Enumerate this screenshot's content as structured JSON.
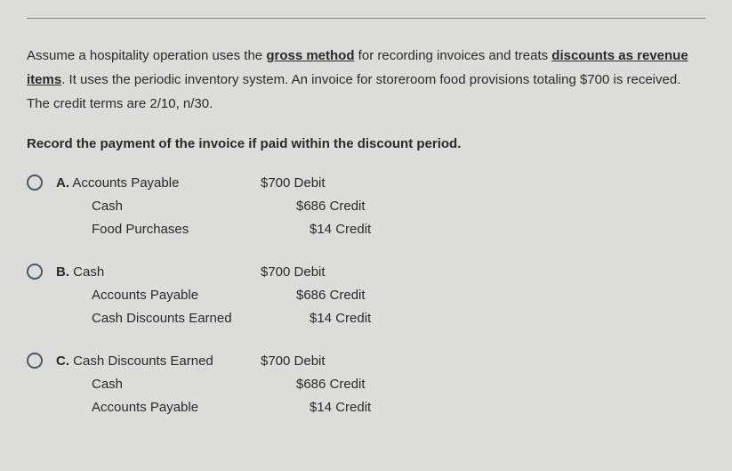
{
  "question": {
    "intro_part1": "Assume a hospitality operation uses the ",
    "underline1": "gross method",
    "intro_part2": " for recording invoices and treats ",
    "underline2": "discounts as revenue items",
    "intro_part3": ". It uses the periodic inventory system. An invoice for storeroom food provisions totaling $700 is received. The credit terms are 2/10, n/30.",
    "instruction": "Record the payment of the invoice if paid within the discount period."
  },
  "options": {
    "a": {
      "label": "A.",
      "line1_account": "Accounts Payable",
      "line1_amount": "$700 Debit",
      "line2_account": "Cash",
      "line2_amount": "$686 Credit",
      "line3_account": "Food Purchases",
      "line3_amount": "$14  Credit"
    },
    "b": {
      "label": "B.",
      "line1_account": "Cash",
      "line1_amount": "$700 Debit",
      "line2_account": "Accounts Payable",
      "line2_amount": "$686 Credit",
      "line3_account": "Cash Discounts Earned",
      "line3_amount": "$14  Credit"
    },
    "c": {
      "label": "C.",
      "line1_account": "Cash Discounts Earned",
      "line1_amount": "$700 Debit",
      "line2_account": "Cash",
      "line2_amount": "$686 Credit",
      "line3_account": "Accounts Payable",
      "line3_amount": "$14  Credit"
    }
  },
  "styling": {
    "background_color": "#dcdcdb",
    "text_color": "#2a2a2a",
    "radio_border_color": "#4a5a6a",
    "font_family": "Arial",
    "base_fontsize": 15
  }
}
